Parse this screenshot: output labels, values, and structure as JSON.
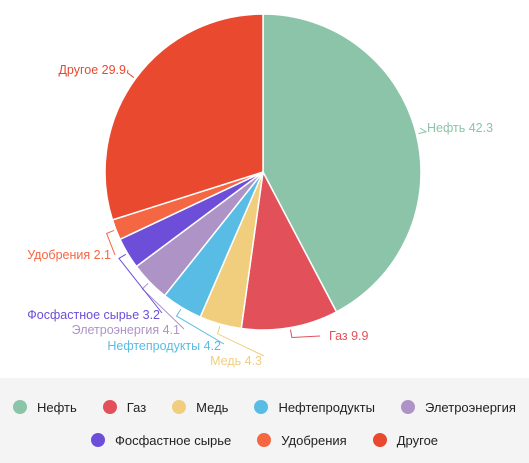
{
  "chart_data": {
    "type": "pie",
    "slices": [
      {
        "name": "Нефть",
        "value": 42.3,
        "color": "#8bc4a8",
        "label": "Нефть 42.3"
      },
      {
        "name": "Газ",
        "value": 9.9,
        "color": "#e2505a",
        "label": "Газ 9.9"
      },
      {
        "name": "Медь",
        "value": 4.3,
        "color": "#f1cd7e",
        "label": "Медь 4.3"
      },
      {
        "name": "Нефтепродукты",
        "value": 4.2,
        "color": "#58bce4",
        "label": "Нефтепродукты 4.2"
      },
      {
        "name": "Элетроэнергия",
        "value": 4.1,
        "color": "#ae93c7",
        "label": "Элетроэнергия 4.1"
      },
      {
        "name": "Фосфастное сырье",
        "value": 3.2,
        "color": "#6c4ed9",
        "label": "Фосфастное сырье 3.2"
      },
      {
        "name": "Удобрения",
        "value": 2.1,
        "color": "#f56643",
        "label": "Удобрения 2.1"
      },
      {
        "name": "Другое",
        "value": 29.9,
        "color": "#e8492f",
        "label": "Другое 29.9"
      }
    ],
    "legend": {
      "placement": "bottom",
      "rows": [
        [
          "Нефть",
          "Газ",
          "Медь",
          "Нефтепродукты",
          "Элетроэнергия"
        ],
        [
          "Фосфастное сырье",
          "Удобрения",
          "Другое"
        ]
      ]
    }
  }
}
